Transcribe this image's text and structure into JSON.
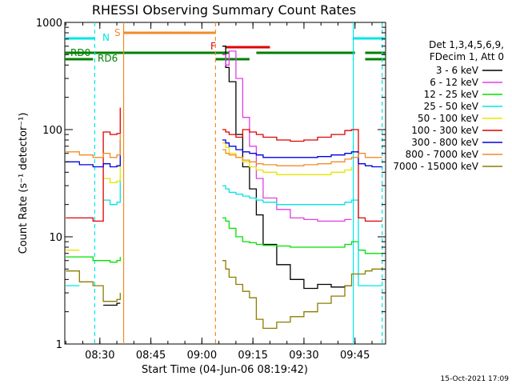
{
  "chart_data": {
    "type": "line",
    "title": "RHESSI Observing Summary Count Rates",
    "xlabel": "Start Time (04-Jun-06 08:19:42)",
    "ylabel": "Count Rate (s⁻¹ detector⁻¹)",
    "yscale": "log",
    "ylim": [
      1,
      1000
    ],
    "xlim": [
      "08:19:42",
      "09:54:00"
    ],
    "x_ticks": [
      "08:30",
      "08:45",
      "09:00",
      "09:15",
      "09:30",
      "09:45"
    ],
    "y_ticks": [
      "1",
      "10",
      "100",
      "1000"
    ],
    "grid": false,
    "legend_position": "right",
    "legend_header": [
      "Det 1,3,4,5,6,9,",
      "FDecim 1, Att 0"
    ],
    "timestamp": "15-Oct-2021 17:09",
    "flags": [
      {
        "label": "N",
        "color": "#00e5e5",
        "segments": [
          [
            "08:19:42",
            "08:28:30"
          ],
          [
            "09:44:30",
            "09:54:00"
          ]
        ]
      },
      {
        "label": "S",
        "color": "#f28c28",
        "segments": [
          [
            "08:37:00",
            "09:04:00"
          ]
        ]
      },
      {
        "label": "F",
        "color": "#e00000",
        "segments": [
          [
            "09:07:00",
            "09:20:00"
          ]
        ]
      },
      {
        "label": "RD0",
        "color": "#008000",
        "segments": [
          [
            "08:19:42",
            "09:08:00"
          ],
          [
            "09:16:00",
            "09:45:00"
          ],
          [
            "09:48:00",
            "09:54:00"
          ]
        ]
      },
      {
        "label": "RD6",
        "color": "#008000",
        "segments": [
          [
            "08:19:42",
            "08:28:00"
          ],
          [
            "09:04:00",
            "09:14:00"
          ],
          [
            "09:48:00",
            "09:54:00"
          ]
        ]
      }
    ],
    "vlines": [
      {
        "time": "08:28:30",
        "color": "#00e5e5",
        "style": "dashed"
      },
      {
        "time": "08:37:00",
        "color": "#f28c28",
        "style": "solid"
      },
      {
        "time": "09:04:00",
        "color": "#f28c28",
        "style": "dashed"
      },
      {
        "time": "09:44:30",
        "color": "#00e5e5",
        "style": "solid"
      },
      {
        "time": "09:53:00",
        "color": "#00e5e5",
        "style": "dashed"
      }
    ],
    "x": [
      "08:20",
      "08:24",
      "08:28",
      "08:31",
      "08:33",
      "08:35",
      "08:36",
      "08:37",
      "09:04",
      "09:06",
      "09:07",
      "09:08",
      "09:10",
      "09:12",
      "09:14",
      "09:16",
      "09:18",
      "09:22",
      "09:26",
      "09:30",
      "09:34",
      "09:38",
      "09:42",
      "09:44",
      "09:46",
      "09:48",
      "09:50",
      "09:53"
    ],
    "series": [
      {
        "name": "3 - 6 keV",
        "color": "#000000",
        "values": [
          null,
          null,
          null,
          2.3,
          2.3,
          2.4,
          2.4,
          null,
          null,
          600,
          380,
          280,
          90,
          45,
          28,
          16,
          8.5,
          5.5,
          4,
          3.3,
          3.6,
          3.4,
          3.5,
          3.5,
          null,
          null,
          null,
          null
        ]
      },
      {
        "name": "6 - 12 keV",
        "color": "#e040e0",
        "values": [
          null,
          null,
          null,
          null,
          null,
          null,
          null,
          null,
          null,
          500,
          400,
          540,
          300,
          130,
          70,
          35,
          23,
          18,
          15,
          14.5,
          14,
          14,
          14.5,
          14.5,
          null,
          null,
          null,
          null
        ]
      },
      {
        "name": "12 - 25 keV",
        "color": "#00e000",
        "values": [
          6.5,
          6.5,
          6,
          6,
          5.8,
          6,
          6.5,
          null,
          null,
          15,
          14,
          12,
          10,
          9,
          8.8,
          8.5,
          8.3,
          8.2,
          8,
          8,
          8,
          8,
          8.5,
          9,
          7.5,
          7,
          7,
          7
        ]
      },
      {
        "name": "25 - 50 keV",
        "color": "#00e5e5",
        "values": [
          3.5,
          3.5,
          null,
          22,
          20,
          21,
          35,
          null,
          null,
          30,
          28,
          26,
          25,
          24,
          23,
          22,
          21,
          20,
          20,
          20,
          20,
          20,
          21,
          22,
          3.5,
          3.5,
          3.5,
          3.5
        ]
      },
      {
        "name": "50 - 100 keV",
        "color": "#e5e500",
        "values": [
          7.5,
          7.5,
          null,
          35,
          32,
          33,
          55,
          null,
          null,
          75,
          68,
          60,
          55,
          50,
          45,
          42,
          40,
          38,
          38,
          38,
          38,
          40,
          42,
          45,
          null,
          null,
          null,
          null
        ]
      },
      {
        "name": "100 - 300 keV",
        "color": "#e00000",
        "values": [
          15,
          15,
          14,
          95,
          90,
          92,
          160,
          null,
          null,
          100,
          95,
          90,
          85,
          100,
          95,
          90,
          85,
          80,
          78,
          80,
          85,
          90,
          98,
          100,
          15,
          14,
          14,
          14
        ]
      },
      {
        "name": "300 - 800 keV",
        "color": "#0000e0",
        "values": [
          50,
          47,
          45,
          48,
          45,
          46,
          80,
          null,
          null,
          80,
          75,
          70,
          65,
          62,
          60,
          58,
          55,
          55,
          55,
          55,
          56,
          58,
          60,
          62,
          48,
          46,
          45,
          45
        ]
      },
      {
        "name": "800 - 7000 keV",
        "color": "#f28c28",
        "values": [
          62,
          58,
          55,
          60,
          55,
          58,
          90,
          null,
          null,
          65,
          60,
          58,
          55,
          52,
          50,
          48,
          47,
          46,
          46,
          47,
          48,
          50,
          53,
          55,
          60,
          55,
          55,
          55
        ]
      },
      {
        "name": "7000 - 15000 keV",
        "color": "#8b7d00",
        "values": [
          4.8,
          3.8,
          3.5,
          2.5,
          2.5,
          2.6,
          3,
          null,
          null,
          6,
          5,
          4.2,
          3.6,
          3.1,
          2.7,
          1.7,
          1.4,
          1.6,
          1.8,
          2,
          2.4,
          2.8,
          3.5,
          4.5,
          4.5,
          4.8,
          5,
          5.2
        ]
      }
    ]
  }
}
